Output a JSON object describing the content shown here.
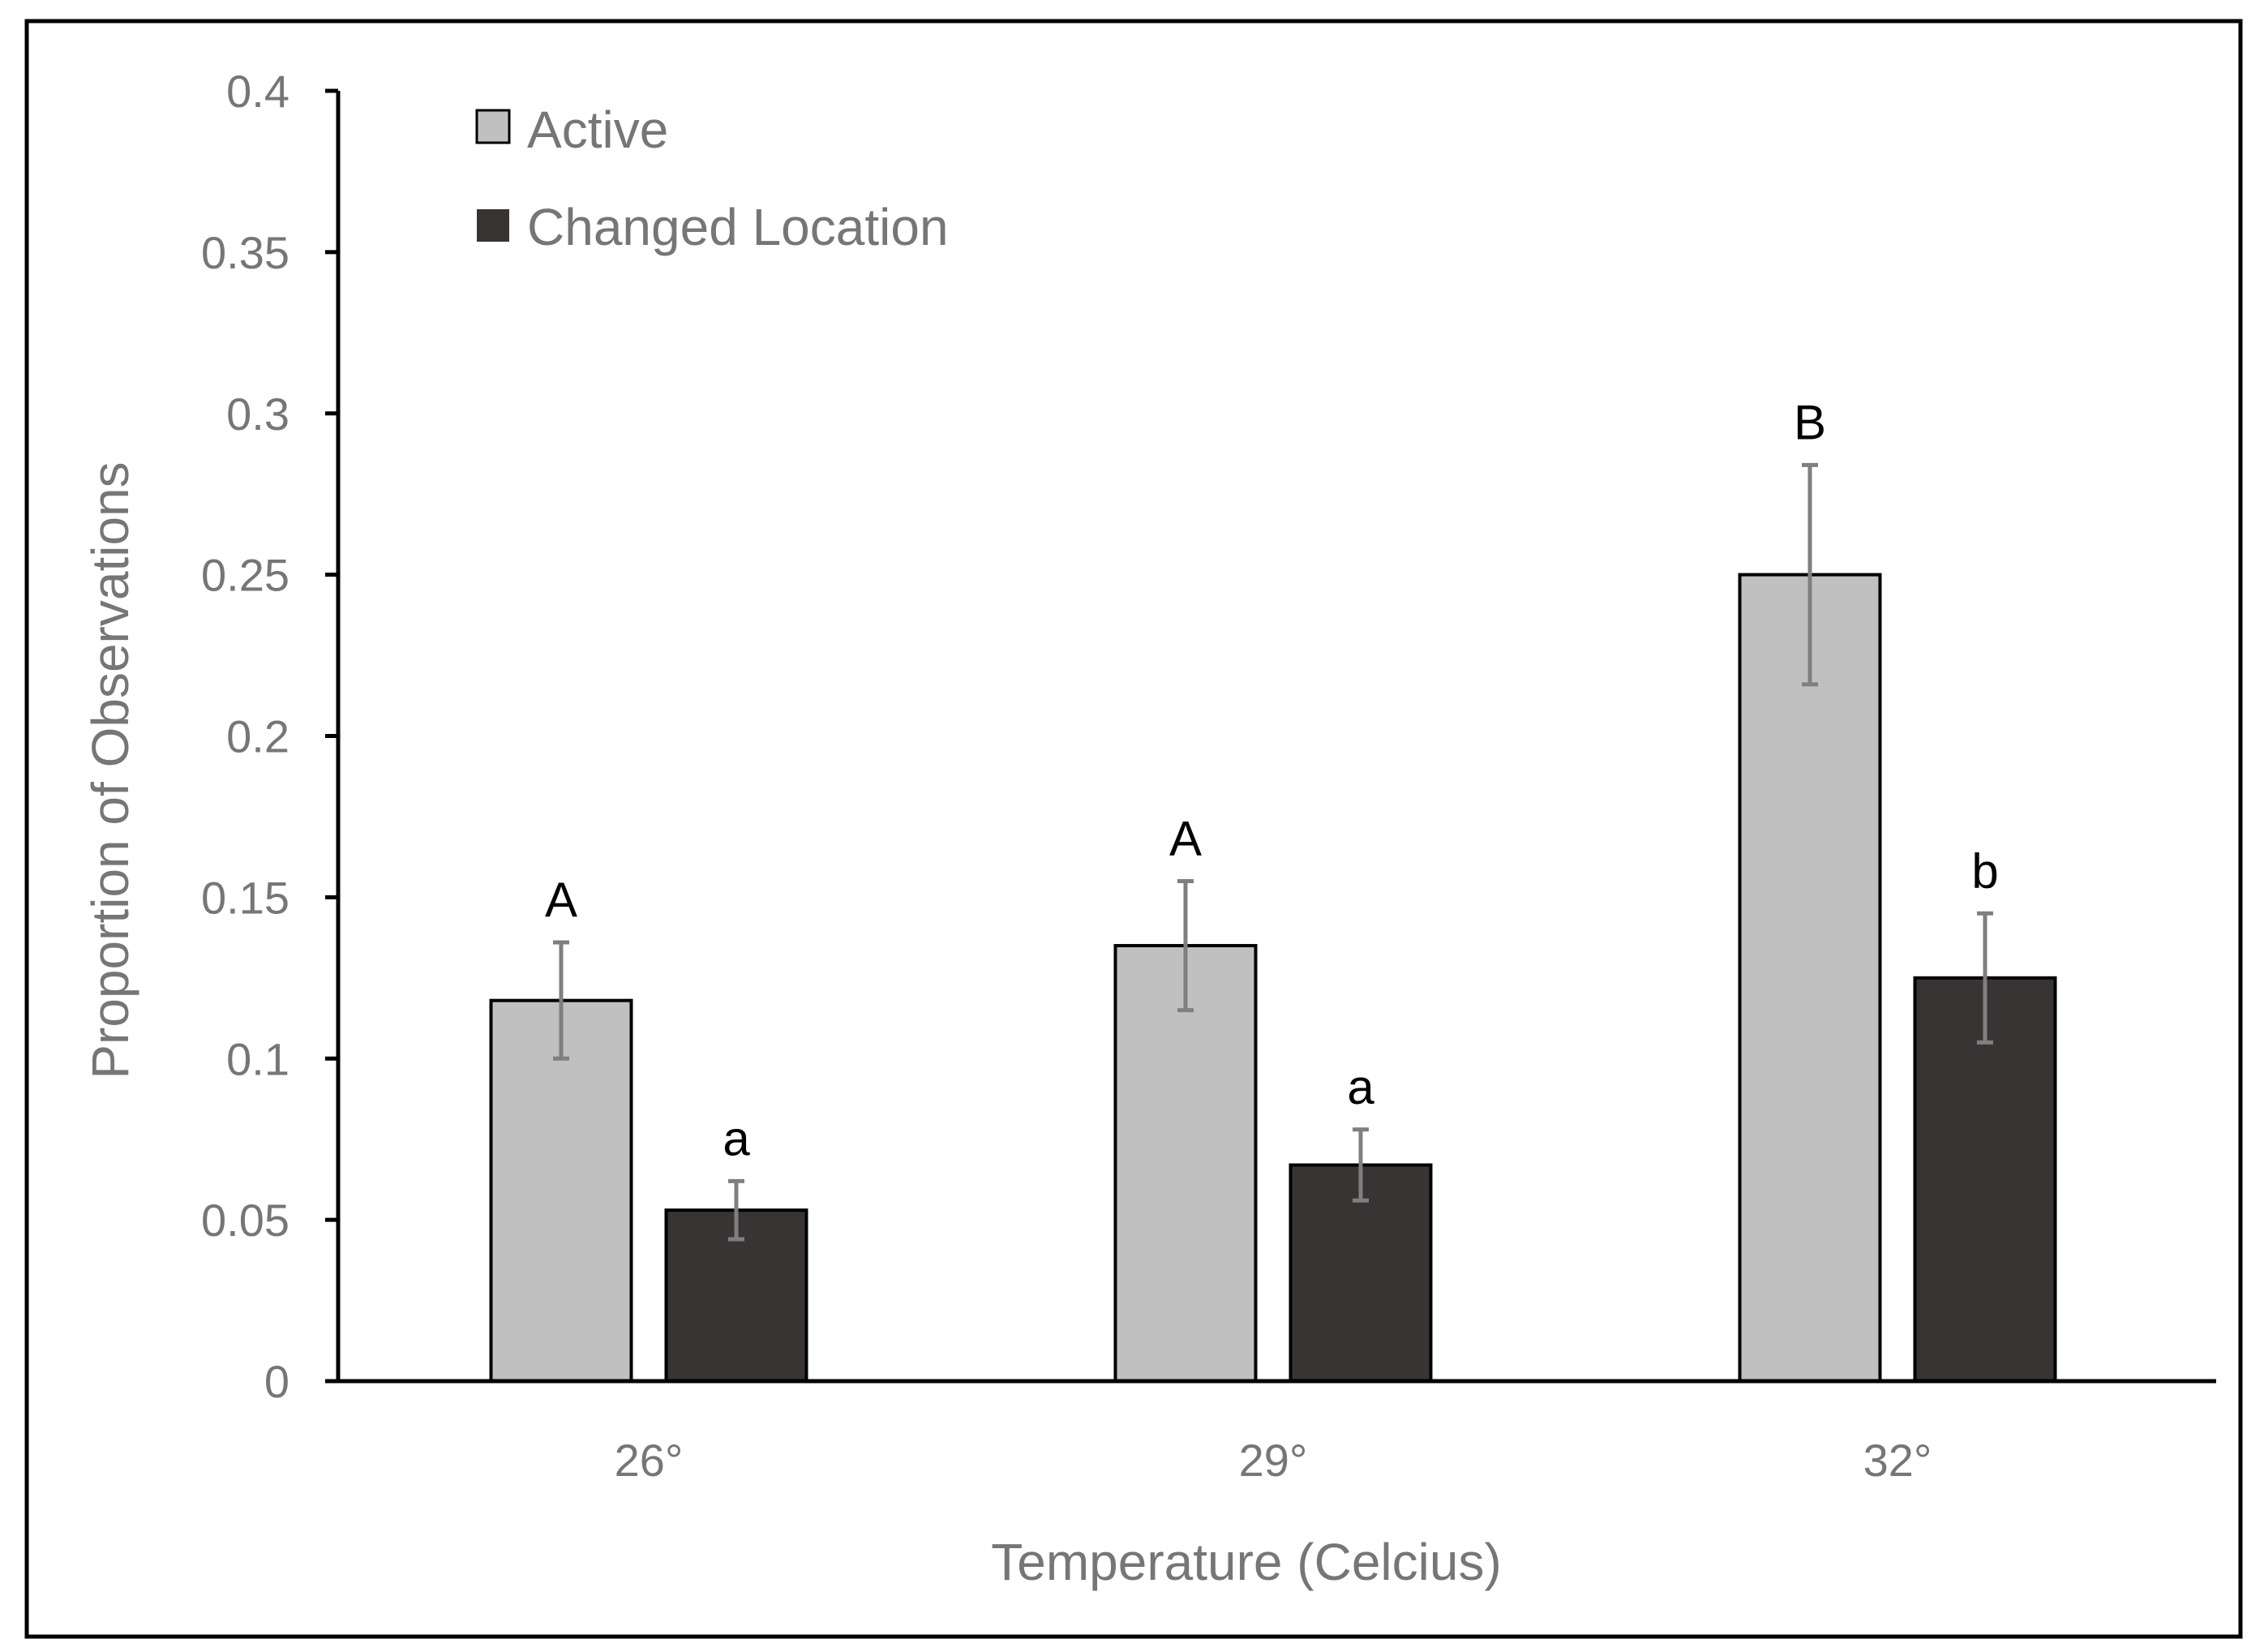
{
  "chart_data": {
    "type": "bar",
    "title": "",
    "xlabel": "Temperature (Celcius)",
    "ylabel": "Proportion of Observations",
    "categories": [
      "26°",
      "29°",
      "32°"
    ],
    "ylim": [
      0,
      0.4
    ],
    "yticks": [
      0,
      0.05,
      0.1,
      0.15,
      0.2,
      0.25,
      0.3,
      0.35,
      0.4
    ],
    "ytick_labels": [
      "0",
      "0.05",
      "0.1",
      "0.15",
      "0.2",
      "0.25",
      "0.3",
      "0.35",
      "0.4"
    ],
    "grid": false,
    "legend_position": "top-left",
    "series": [
      {
        "name": "Active",
        "color": "#c0c0c0",
        "values": [
          0.118,
          0.135,
          0.25
        ],
        "error": [
          0.018,
          0.02,
          0.034
        ],
        "significance": [
          "A",
          "A",
          "B"
        ]
      },
      {
        "name": "Changed Location",
        "color": "#383434",
        "values": [
          0.053,
          0.067,
          0.125
        ],
        "error": [
          0.009,
          0.011,
          0.02
        ],
        "significance": [
          "a",
          "a",
          "b"
        ]
      }
    ]
  },
  "colors": {
    "axis": "#000000",
    "text_gray": "#767676",
    "error_bar": "#7f7f7f",
    "frame": "#000000"
  }
}
